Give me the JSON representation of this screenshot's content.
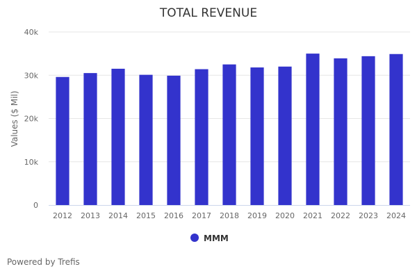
{
  "chart_data": {
    "type": "bar",
    "title": "TOTAL REVENUE",
    "xlabel": "",
    "ylabel": "Values ($ Mil)",
    "ylim": [
      0,
      40000
    ],
    "yticks": [
      0,
      10000,
      20000,
      30000,
      40000
    ],
    "ytick_labels": [
      "0",
      "10k",
      "20k",
      "30k",
      "40k"
    ],
    "grid": true,
    "legend_position": "bottom-center",
    "categories": [
      "2012",
      "2013",
      "2014",
      "2015",
      "2016",
      "2017",
      "2018",
      "2019",
      "2020",
      "2021",
      "2022",
      "2023",
      "2024"
    ],
    "series": [
      {
        "name": "MMM",
        "color": "#3333cc",
        "values": [
          29600,
          30500,
          31500,
          30100,
          29900,
          31400,
          32500,
          31800,
          32000,
          35000,
          33900,
          34400,
          34900
        ]
      }
    ]
  },
  "footer": {
    "credit": "Powered by Trefis"
  }
}
